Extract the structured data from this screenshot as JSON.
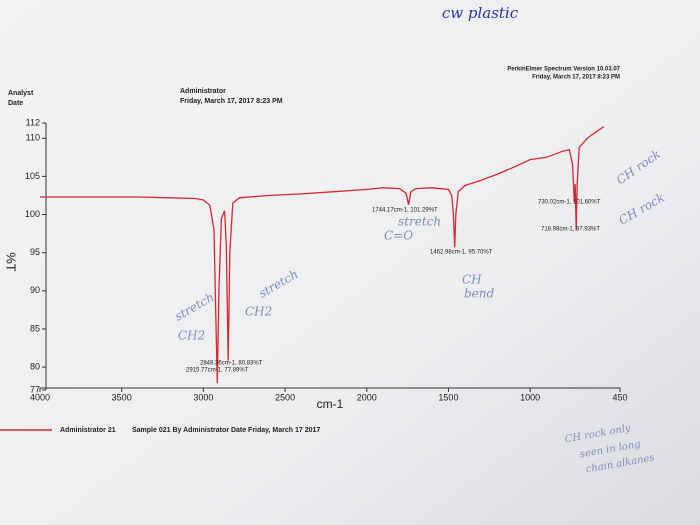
{
  "chart_data": {
    "type": "line",
    "title": "cw plastic",
    "header": {
      "software": "PerkinElmer Spectrum Version 10.03.07",
      "print_date": "Friday, March 17, 2017 8:23 PM",
      "analyst_label": "Analyst",
      "date_label": "Date",
      "analyst": "Administrator",
      "date": "Friday, March 17, 2017 8:23 PM"
    },
    "x_label": "cm-1",
    "y_label": "%T",
    "caption": "Sample 021 By Administrator Date Friday, March 17 2017",
    "xlim": [
      4000,
      450
    ],
    "ylim": [
      77,
      112
    ],
    "xticks": [
      4000,
      3500,
      3000,
      2500,
      2000,
      1500,
      1000,
      450
    ],
    "yticks": [
      77,
      80,
      85,
      90,
      95,
      100,
      105,
      110,
      112
    ],
    "grid": false,
    "x": [
      4000,
      3800,
      3600,
      3400,
      3200,
      3050,
      3000,
      2960,
      2935,
      2925,
      2915,
      2905,
      2890,
      2870,
      2860,
      2848,
      2838,
      2820,
      2780,
      2600,
      2400,
      2200,
      2000,
      1900,
      1800,
      1760,
      1744,
      1730,
      1700,
      1600,
      1500,
      1480,
      1470,
      1462,
      1455,
      1440,
      1400,
      1300,
      1200,
      1100,
      1000,
      900,
      800,
      760,
      740,
      730,
      724,
      718,
      712,
      700,
      650,
      600,
      550
    ],
    "series": [
      {
        "name": "Administrator 21",
        "color": "#d9272e",
        "values": [
          102.3,
          102.3,
          102.3,
          102.3,
          102.2,
          102.1,
          101.9,
          101.2,
          98,
          88,
          77.89,
          90,
          99.5,
          100.5,
          96,
          80.83,
          95,
          101.5,
          102.2,
          102.5,
          102.7,
          103,
          103.3,
          103.5,
          103.4,
          102.8,
          101.29,
          103,
          103.4,
          103.5,
          103.3,
          102.5,
          100,
          95.7,
          100,
          103,
          103.8,
          104.5,
          105.3,
          106.2,
          107.2,
          107.5,
          108.3,
          108.5,
          106.5,
          101.6,
          104,
          97.93,
          104,
          108.8,
          110,
          110.8,
          111.5
        ]
      }
    ],
    "peak_labels": [
      "2848.36cm-1, 80.83%T",
      "2915.77cm-1, 77.89%T",
      "1744.17cm-1, 101.29%T",
      "1462.98cm-1, 95.70%T",
      "730.02cm-1, 101.60%T",
      "718.98cm-1, 97.93%T"
    ],
    "notes": [
      "stretch",
      "CH2",
      "stretch",
      "CH2",
      "stretch",
      "C=O",
      "CH",
      "bend",
      "CH rock",
      "CH rock",
      "CH rock only",
      "seen in long",
      "chain alkanes"
    ]
  }
}
